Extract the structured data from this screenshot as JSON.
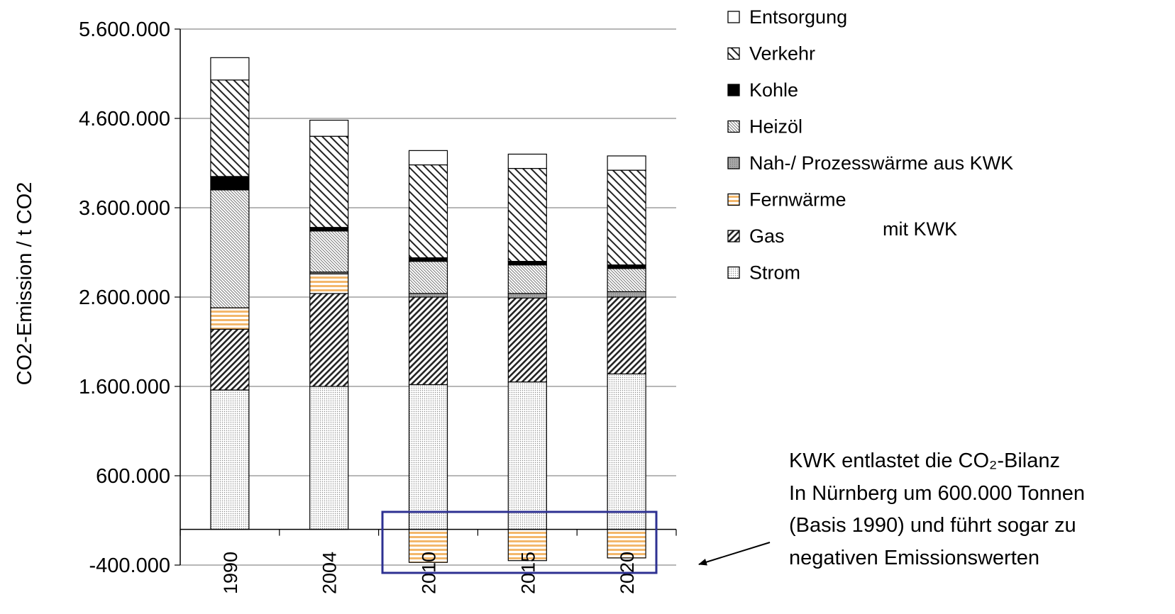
{
  "chart_data": {
    "type": "bar",
    "stacked": true,
    "categories": [
      "1990",
      "2004",
      "2010",
      "2015",
      "2020"
    ],
    "ylabel": "CO2-Emission / t CO2",
    "xlabel": "",
    "title": "",
    "ylim": [
      -400000,
      5600000
    ],
    "yticks": [
      -400000,
      600000,
      1600000,
      2600000,
      3600000,
      4600000,
      5600000
    ],
    "ytick_labels": [
      "-400.000",
      "600.000",
      "1.600.000",
      "2.600.000",
      "3.600.000",
      "4.600.000",
      "5.600.000"
    ],
    "grid": true,
    "legend_position": "top-right",
    "series": [
      {
        "name": "Strom",
        "values": [
          1560000,
          1600000,
          1620000,
          1650000,
          1740000
        ],
        "pattern": "dots",
        "color": "#e8e8e8"
      },
      {
        "name": "Gas",
        "values": [
          680000,
          1040000,
          980000,
          940000,
          860000
        ],
        "pattern": "diag-dense",
        "color": "#ffffff"
      },
      {
        "name": "Fernwärme",
        "values": [
          240000,
          220000,
          -370000,
          -350000,
          -320000
        ],
        "pattern": "hstripe",
        "color": "#f3b76b"
      },
      {
        "name": "Nah-/ Prozesswärme aus KWK",
        "values": [
          0,
          20000,
          40000,
          50000,
          60000
        ],
        "pattern": "gray",
        "color": "#a6a6a6"
      },
      {
        "name": "Heizöl",
        "values": [
          1320000,
          460000,
          360000,
          320000,
          260000
        ],
        "pattern": "fine",
        "color": "#d0d0d0"
      },
      {
        "name": "Kohle",
        "values": [
          150000,
          40000,
          40000,
          40000,
          40000
        ],
        "pattern": "solid",
        "color": "#000000"
      },
      {
        "name": "Verkehr",
        "values": [
          1080000,
          1020000,
          1040000,
          1040000,
          1060000
        ],
        "pattern": "diag-wide",
        "color": "#ffffff"
      },
      {
        "name": "Entsorgung",
        "values": [
          250000,
          180000,
          160000,
          160000,
          160000
        ],
        "pattern": "none",
        "color": "#ffffff"
      }
    ],
    "legend_extra": "mit KWK",
    "highlight_color": "#2e3192",
    "annotation": {
      "lines": [
        "KWK entlastet die CO₂-Bilanz",
        "In Nürnberg um 600.000 Tonnen",
        "(Basis 1990) und führt sogar zu",
        "negativen Emissionswerten"
      ]
    }
  }
}
